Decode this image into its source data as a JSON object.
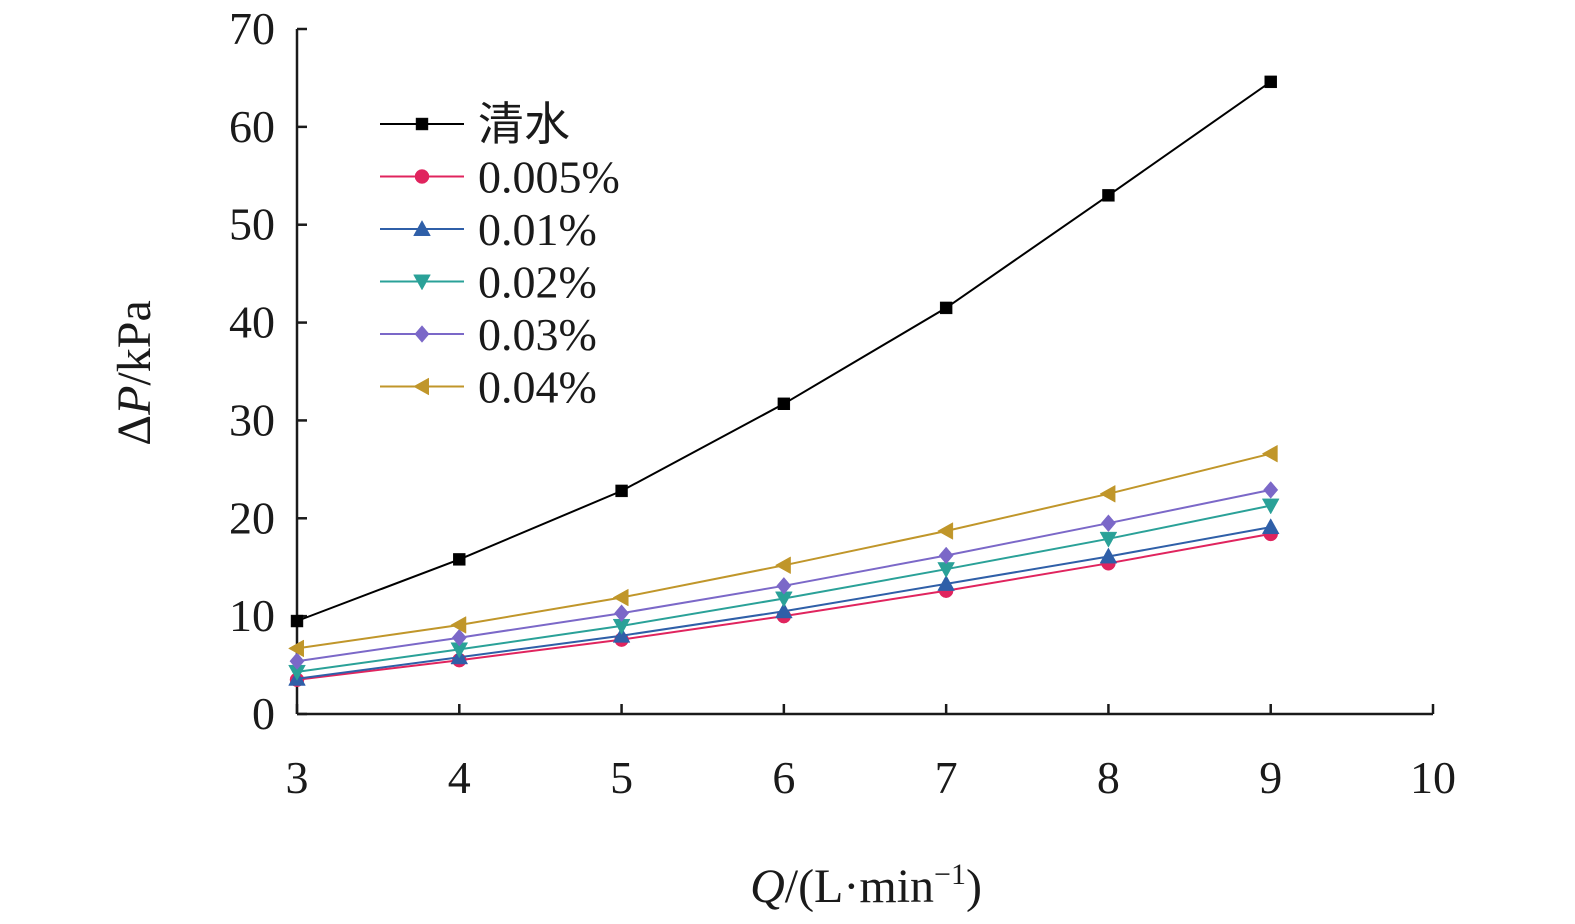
{
  "chart_data": {
    "type": "line",
    "title": "",
    "x": [
      3,
      4,
      5,
      6,
      7,
      8,
      9
    ],
    "xlim": [
      3,
      10
    ],
    "ylim": [
      0,
      70
    ],
    "xticks": [
      "3",
      "4",
      "5",
      "6",
      "7",
      "8",
      "9",
      "10"
    ],
    "yticks": [
      "0",
      "10",
      "20",
      "30",
      "40",
      "50",
      "60",
      "70"
    ],
    "xlabel": {
      "italic": "Q",
      "rest": "/(L·min",
      "sup": "−1",
      "close": ")"
    },
    "ylabel": {
      "delta": "Δ",
      "italic": "P",
      "rest": "/kPa"
    },
    "grid": false,
    "legend_position": "top-left",
    "series": [
      {
        "name": "清水",
        "color": "#000000",
        "marker": "square",
        "values": [
          9.5,
          15.8,
          22.8,
          31.7,
          41.5,
          53.0,
          64.6
        ]
      },
      {
        "name": "0.005%",
        "color": "#e0245e",
        "marker": "circle",
        "values": [
          3.5,
          5.5,
          7.6,
          10.0,
          12.6,
          15.4,
          18.4
        ]
      },
      {
        "name": "0.01%",
        "color": "#2f5fa8",
        "marker": "triangle-up",
        "values": [
          3.6,
          5.8,
          8.0,
          10.5,
          13.3,
          16.1,
          19.1
        ]
      },
      {
        "name": "0.02%",
        "color": "#2aa198",
        "marker": "triangle-down",
        "values": [
          4.3,
          6.6,
          9.0,
          11.8,
          14.8,
          17.9,
          21.3
        ]
      },
      {
        "name": "0.03%",
        "color": "#7b68c8",
        "marker": "diamond",
        "values": [
          5.4,
          7.8,
          10.3,
          13.1,
          16.2,
          19.5,
          22.9
        ]
      },
      {
        "name": "0.04%",
        "color": "#c0962a",
        "marker": "triangle-left",
        "values": [
          6.7,
          9.1,
          11.9,
          15.2,
          18.7,
          22.5,
          26.6
        ]
      }
    ]
  }
}
